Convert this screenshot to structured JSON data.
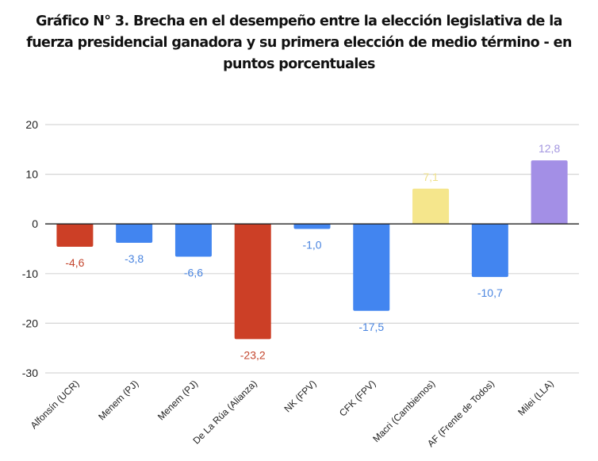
{
  "chart_data": {
    "type": "bar",
    "title": "Gráfico N° 3. Brecha en el desempeño entre la elección legislativa de la fuerza presidencial ganadora y su primera elección de medio término - en puntos porcentuales",
    "xlabel": "",
    "ylabel": "",
    "ylim": [
      -30,
      20
    ],
    "yticks": [
      20,
      10,
      0,
      -10,
      -20,
      -30
    ],
    "ytick_labels": [
      "20",
      "10",
      "0",
      "-10",
      "-20",
      "-30"
    ],
    "grid": true,
    "legend": "none",
    "categories": [
      "Alfonsín (UCR)",
      "Menem (PJ)",
      "Menem (PJ)",
      "De La Rúa (Alianza)",
      "NK (FPV)",
      "CFK (FPV)",
      "Macri (Cambiemos)",
      "AF (Frente de Todos)",
      "Milei (LLA)"
    ],
    "values": [
      -4.6,
      -3.8,
      -6.6,
      -23.2,
      -1.0,
      -17.5,
      7.1,
      -10.7,
      12.8
    ],
    "data_labels": [
      "-4,6",
      "-3,8",
      "-6,6",
      "-23,2",
      "-1,0",
      "-17,5",
      "7,1",
      "-10,7",
      "12,8"
    ],
    "colors": [
      "#cc3f26",
      "#4285f0",
      "#4285f0",
      "#cc3f26",
      "#4285f0",
      "#4285f0",
      "#f5e68c",
      "#4285f0",
      "#a38fe6"
    ],
    "label_colors": [
      "#c4462e",
      "#4a85e0",
      "#4a85e0",
      "#c4462e",
      "#4a85e0",
      "#4a85e0",
      "#efe08a",
      "#4a85e0",
      "#a497e0"
    ]
  },
  "colors": {
    "grid": "#d6d6d6",
    "zero_line": "#222222",
    "text": "#222222"
  }
}
